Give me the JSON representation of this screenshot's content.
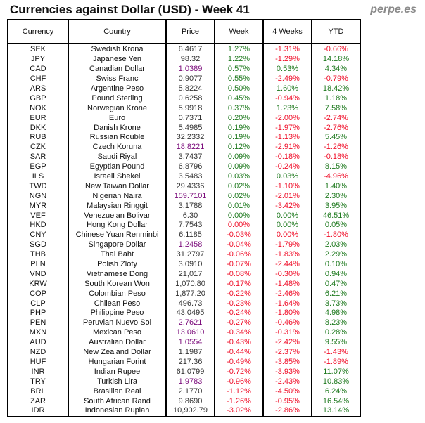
{
  "title": "Currencies against Dollar (USD) - Week 41",
  "brand": "perpe.es",
  "colors": {
    "positive": "#1f7a1f",
    "negative": "#f0102a",
    "price_highlight": "#7a0a7a"
  },
  "headers": [
    "Currency",
    "Country",
    "Price",
    "Week",
    "4 Weeks",
    "YTD"
  ],
  "rows": [
    {
      "c": [
        "SEK",
        "Swedish Krona",
        "6.4617",
        "1.27%",
        "-1.31%",
        "-0.66%"
      ]
    },
    {
      "c": [
        "JPY",
        "Japanese Yen",
        "98.32",
        "1.22%",
        "-1.29%",
        "14.18%"
      ]
    },
    {
      "c": [
        "CAD",
        "Canadian Dollar",
        "1.0389",
        "0.57%",
        "0.53%",
        "4.34%"
      ],
      "hl": true
    },
    {
      "c": [
        "CHF",
        "Swiss Franc",
        "0.9077",
        "0.55%",
        "-2.49%",
        "-0.79%"
      ]
    },
    {
      "c": [
        "ARS",
        "Argentine Peso",
        "5.8224",
        "0.50%",
        "1.60%",
        "18.42%"
      ]
    },
    {
      "c": [
        "GBP",
        "Pound Sterling",
        "0.6258",
        "0.45%",
        "-0.94%",
        "1.18%"
      ]
    },
    {
      "c": [
        "NOK",
        "Norwegian Krone",
        "5.9918",
        "0.37%",
        "1.23%",
        "7.58%"
      ]
    },
    {
      "c": [
        "EUR",
        "Euro",
        "0.7371",
        "0.20%",
        "-2.00%",
        "-2.74%"
      ]
    },
    {
      "c": [
        "DKK",
        "Danish Krone",
        "5.4985",
        "0.19%",
        "-1.97%",
        "-2.76%"
      ]
    },
    {
      "c": [
        "RUB",
        "Russian Rouble",
        "32.2332",
        "0.19%",
        "-1.13%",
        "5.45%"
      ]
    },
    {
      "c": [
        "CZK",
        "Czech Koruna",
        "18.8221",
        "0.12%",
        "-2.91%",
        "-1.26%"
      ],
      "hl": true
    },
    {
      "c": [
        "SAR",
        "Saudi Riyal",
        "3.7437",
        "0.09%",
        "-0.18%",
        "-0.18%"
      ]
    },
    {
      "c": [
        "EGP",
        "Egyptian Pound",
        "6.8796",
        "0.09%",
        "-0.24%",
        "8.15%"
      ]
    },
    {
      "c": [
        "ILS",
        "Israeli Shekel",
        "3.5483",
        "0.03%",
        "0.03%",
        "-4.96%"
      ]
    },
    {
      "c": [
        "TWD",
        "New Taiwan Dollar",
        "29.4336",
        "0.02%",
        "-1.10%",
        "1.40%"
      ]
    },
    {
      "c": [
        "NGN",
        "Nigerian Naira",
        "159.7101",
        "0.02%",
        "-2.01%",
        "2.30%"
      ],
      "hl": true
    },
    {
      "c": [
        "MYR",
        "Malaysian Ringgit",
        "3.1788",
        "0.01%",
        "-3.42%",
        "3.95%"
      ]
    },
    {
      "c": [
        "VEF",
        "Venezuelan Bolivar",
        "6.30",
        "0.00%",
        "0.00%",
        "46.51%"
      ]
    },
    {
      "c": [
        "HKD",
        "Hong Kong Dollar",
        "7.7543",
        "0.00%",
        "0.00%",
        "0.05%"
      ],
      "tone": "rgg"
    },
    {
      "c": [
        "CNY",
        "Chinese Yuan Renminbi",
        "6.1185",
        "-0.03%",
        "0.00%",
        "-1.80%"
      ],
      "tone": "rrr"
    },
    {
      "c": [
        "SGD",
        "Singapore Dollar",
        "1.2458",
        "-0.04%",
        "-1.79%",
        "2.03%"
      ],
      "hl": true
    },
    {
      "c": [
        "THB",
        "Thai Baht",
        "31.2797",
        "-0.06%",
        "-1.83%",
        "2.29%"
      ]
    },
    {
      "c": [
        "PLN",
        "Polish Zloty",
        "3.0910",
        "-0.07%",
        "-2.44%",
        "0.10%"
      ]
    },
    {
      "c": [
        "VND",
        "Vietnamese Dong",
        "21,017",
        "-0.08%",
        "-0.30%",
        "0.94%"
      ]
    },
    {
      "c": [
        "KRW",
        "South Korean Won",
        "1,070.80",
        "-0.17%",
        "-1.48%",
        "0.47%"
      ]
    },
    {
      "c": [
        "COP",
        "Colombian Peso",
        "1,877.20",
        "-0.22%",
        "-2.46%",
        "6.21%"
      ]
    },
    {
      "c": [
        "CLP",
        "Chilean Peso",
        "496.73",
        "-0.23%",
        "-1.64%",
        "3.73%"
      ]
    },
    {
      "c": [
        "PHP",
        "Philippine Peso",
        "43.0495",
        "-0.24%",
        "-1.80%",
        "4.98%"
      ]
    },
    {
      "c": [
        "PEN",
        "Peruvian Nuevo Sol",
        "2.7621",
        "-0.27%",
        "-0.46%",
        "8.23%"
      ],
      "hl": true
    },
    {
      "c": [
        "MXN",
        "Mexican Peso",
        "13.0610",
        "-0.34%",
        "-0.31%",
        "0.28%"
      ],
      "hl": true
    },
    {
      "c": [
        "AUD",
        "Australian Dollar",
        "1.0554",
        "-0.43%",
        "-2.42%",
        "9.55%"
      ],
      "hl": true
    },
    {
      "c": [
        "NZD",
        "New Zealand Dollar",
        "1.1987",
        "-0.44%",
        "-2.37%",
        "-1.43%"
      ]
    },
    {
      "c": [
        "HUF",
        "Hungarian Forint",
        "217.36",
        "-0.49%",
        "-3.85%",
        "-1.89%"
      ]
    },
    {
      "c": [
        "INR",
        "Indian Rupee",
        "61.0799",
        "-0.72%",
        "-3.93%",
        "11.07%"
      ]
    },
    {
      "c": [
        "TRY",
        "Turkish Lira",
        "1.9783",
        "-0.96%",
        "-2.43%",
        "10.83%"
      ],
      "hl": true
    },
    {
      "c": [
        "BRL",
        "Brasilian Real",
        "2.1770",
        "-1.12%",
        "-4.50%",
        "6.24%"
      ]
    },
    {
      "c": [
        "ZAR",
        "South African Rand",
        "9.8690",
        "-1.26%",
        "-0.95%",
        "16.54%"
      ]
    },
    {
      "c": [
        "IDR",
        "Indonesian Rupiah",
        "10,902.79",
        "-3.02%",
        "-2.86%",
        "13.14%"
      ]
    }
  ]
}
